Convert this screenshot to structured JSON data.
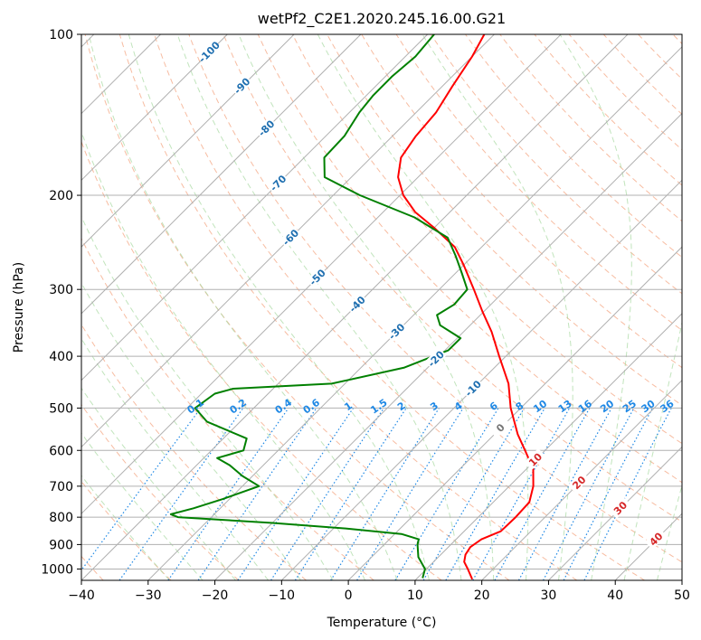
{
  "chart_data": {
    "type": "line",
    "title": "wetPf2_C2E1.2020.245.16.00.G21",
    "xlabel": "Temperature (°C)",
    "ylabel": "Pressure (hPa)",
    "xlim": [
      -40,
      50
    ],
    "ylim": [
      1050,
      100
    ],
    "y_scale": "log",
    "skew_degrees": 45,
    "grid": true,
    "x_ticks": [
      -40,
      -30,
      -20,
      -10,
      0,
      10,
      20,
      30,
      40,
      50
    ],
    "x_tick_labels": [
      "−40",
      "−30",
      "−20",
      "−10",
      "0",
      "10",
      "20",
      "30",
      "40",
      "50"
    ],
    "y_ticks": [
      1000,
      900,
      800,
      700,
      600,
      500,
      400,
      300,
      200,
      100
    ],
    "y_tick_labels": [
      "1000",
      "900",
      "800",
      "700",
      "600",
      "500",
      "400",
      "300",
      "200",
      "100"
    ],
    "series": [
      {
        "kind": "temperature",
        "color": "#ff0000",
        "points": [
          [
            1045,
            18.4
          ],
          [
            1000,
            16.2
          ],
          [
            970,
            14.6
          ],
          [
            940,
            13.7
          ],
          [
            910,
            13.3
          ],
          [
            880,
            13.8
          ],
          [
            850,
            15.5
          ],
          [
            800,
            15.6
          ],
          [
            750,
            15.4
          ],
          [
            700,
            13.6
          ],
          [
            650,
            11.0
          ],
          [
            600,
            7.0
          ],
          [
            560,
            3.5
          ],
          [
            500,
            -1.5
          ],
          [
            450,
            -5.5
          ],
          [
            400,
            -11.0
          ],
          [
            360,
            -15.8
          ],
          [
            330,
            -20.2
          ],
          [
            300,
            -24.8
          ],
          [
            270,
            -30.0
          ],
          [
            250,
            -34.0
          ],
          [
            230,
            -40.0
          ],
          [
            215,
            -45.2
          ],
          [
            200,
            -49.5
          ],
          [
            185,
            -53.0
          ],
          [
            170,
            -55.5
          ],
          [
            155,
            -56.5
          ],
          [
            140,
            -57.0
          ],
          [
            125,
            -58.5
          ],
          [
            110,
            -60.0
          ],
          [
            100,
            -61.5
          ]
        ]
      },
      {
        "kind": "dewpoint",
        "color": "#008000",
        "points": [
          [
            1040,
            10.8
          ],
          [
            1000,
            9.8
          ],
          [
            950,
            7.0
          ],
          [
            900,
            5.0
          ],
          [
            880,
            4.4
          ],
          [
            860,
            1.0
          ],
          [
            840,
            -8.0
          ],
          [
            820,
            -20.0
          ],
          [
            800,
            -35.0
          ],
          [
            790,
            -36.5
          ],
          [
            770,
            -34.0
          ],
          [
            740,
            -31.0
          ],
          [
            700,
            -27.5
          ],
          [
            670,
            -31.5
          ],
          [
            640,
            -35.0
          ],
          [
            620,
            -38.0
          ],
          [
            600,
            -35.2
          ],
          [
            570,
            -36.5
          ],
          [
            530,
            -45.0
          ],
          [
            500,
            -48.8
          ],
          [
            470,
            -48.0
          ],
          [
            460,
            -46.0
          ],
          [
            450,
            -32.0
          ],
          [
            420,
            -23.5
          ],
          [
            390,
            -19.5
          ],
          [
            370,
            -19.5
          ],
          [
            350,
            -24.5
          ],
          [
            335,
            -26.5
          ],
          [
            320,
            -25.5
          ],
          [
            300,
            -25.8
          ],
          [
            280,
            -29.0
          ],
          [
            260,
            -32.5
          ],
          [
            240,
            -36.5
          ],
          [
            220,
            -44.5
          ],
          [
            200,
            -56.0
          ],
          [
            185,
            -64.0
          ],
          [
            170,
            -67.0
          ],
          [
            155,
            -67.2
          ],
          [
            140,
            -68.5
          ],
          [
            130,
            -69.0
          ],
          [
            120,
            -69.0
          ],
          [
            110,
            -68.5
          ],
          [
            100,
            -69.0
          ]
        ]
      }
    ],
    "dry_adiabat_color": "#f4a582",
    "moist_adiabat_color": "#a6d8a0",
    "mixing_ratio_color": "#1e88e5",
    "isotherm_labels": [
      "-100",
      "-90",
      "-80",
      "-70",
      "-60",
      "-50",
      "-40",
      "-30",
      "-20",
      "-10",
      "0",
      "10",
      "20",
      "30",
      "40"
    ],
    "isotherm_label_colors": {
      "cold": "#1f6fb0",
      "zero": "#777777",
      "warm": "#d62728"
    },
    "mixing_ratio_labels": [
      "0.1",
      "0.2",
      "0.4",
      "0.6",
      "1",
      "1.5",
      "2",
      "3",
      "4",
      "6",
      "8",
      "10",
      "13",
      "16",
      "20",
      "25",
      "30",
      "36"
    ]
  }
}
